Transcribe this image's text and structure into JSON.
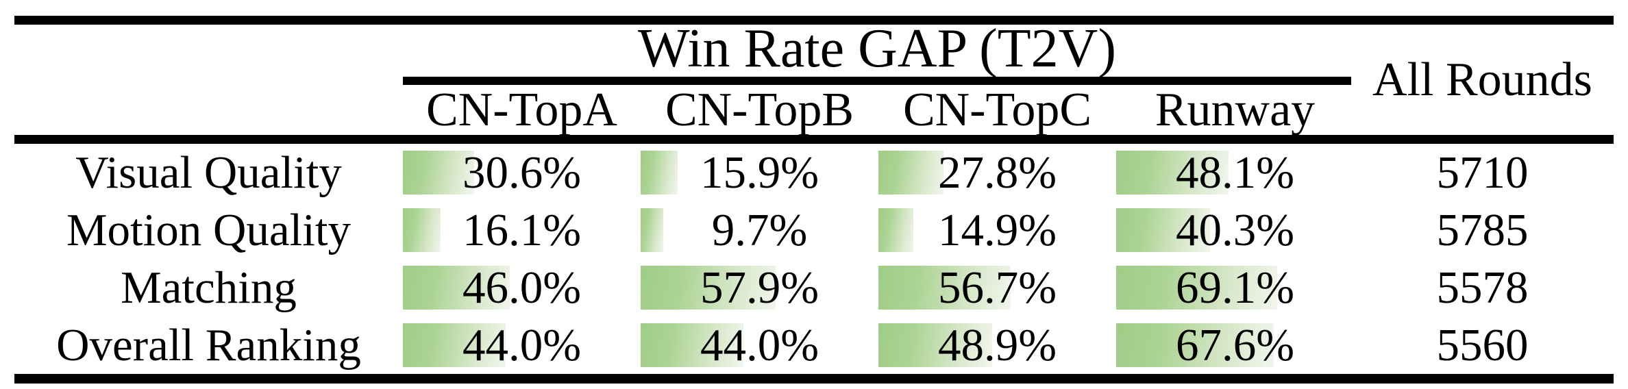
{
  "table": {
    "span_header": "Win Rate GAP (T2V)",
    "all_rounds_header": "All Rounds",
    "columns": [
      "CN-TopA",
      "CN-TopB",
      "CN-TopC",
      "Runway"
    ],
    "rows": [
      {
        "label": "Visual Quality",
        "cells": [
          {
            "text": "30.6%",
            "pct": 30.6
          },
          {
            "text": "15.9%",
            "pct": 15.9
          },
          {
            "text": "27.8%",
            "pct": 27.8
          },
          {
            "text": "48.1%",
            "pct": 48.1
          }
        ],
        "all_rounds": "5710"
      },
      {
        "label": "Motion Quality",
        "cells": [
          {
            "text": "16.1%",
            "pct": 16.1
          },
          {
            "text": "9.7%",
            "pct": 9.7
          },
          {
            "text": "14.9%",
            "pct": 14.9
          },
          {
            "text": "40.3%",
            "pct": 40.3
          }
        ],
        "all_rounds": "5785"
      },
      {
        "label": "Matching",
        "cells": [
          {
            "text": "46.0%",
            "pct": 46.0
          },
          {
            "text": "57.9%",
            "pct": 57.9
          },
          {
            "text": "56.7%",
            "pct": 56.7
          },
          {
            "text": "69.1%",
            "pct": 69.1
          }
        ],
        "all_rounds": "5578"
      },
      {
        "label": "Overall Ranking",
        "cells": [
          {
            "text": "44.0%",
            "pct": 44.0
          },
          {
            "text": "44.0%",
            "pct": 44.0
          },
          {
            "text": "48.9%",
            "pct": 48.9
          },
          {
            "text": "67.6%",
            "pct": 67.6
          }
        ],
        "all_rounds": "5560"
      }
    ]
  },
  "chart_data": {
    "type": "table",
    "title": "Win Rate GAP (T2V)",
    "columns": [
      "CN-TopA",
      "CN-TopB",
      "CN-TopC",
      "Runway",
      "All Rounds"
    ],
    "categories": [
      "Visual Quality",
      "Motion Quality",
      "Matching",
      "Overall Ranking"
    ],
    "series": [
      {
        "name": "CN-TopA",
        "values": [
          30.6,
          16.1,
          46.0,
          44.0
        ]
      },
      {
        "name": "CN-TopB",
        "values": [
          15.9,
          9.7,
          57.9,
          44.0
        ]
      },
      {
        "name": "CN-TopC",
        "values": [
          27.8,
          14.9,
          56.7,
          48.9
        ]
      },
      {
        "name": "Runway",
        "values": [
          48.1,
          40.3,
          69.1,
          67.6
        ]
      }
    ],
    "all_rounds": [
      5710,
      5785,
      5578,
      5560
    ],
    "value_unit": "%",
    "bar_scale_max": 100,
    "layout": "data bars fill left-to-right proportional to percent of 100"
  },
  "colors": {
    "bar_green_start": "#9fcd85",
    "bar_green_end": "#f2f6ee",
    "rule_color": "#000000",
    "text_color": "#000000",
    "background": "#ffffff"
  }
}
